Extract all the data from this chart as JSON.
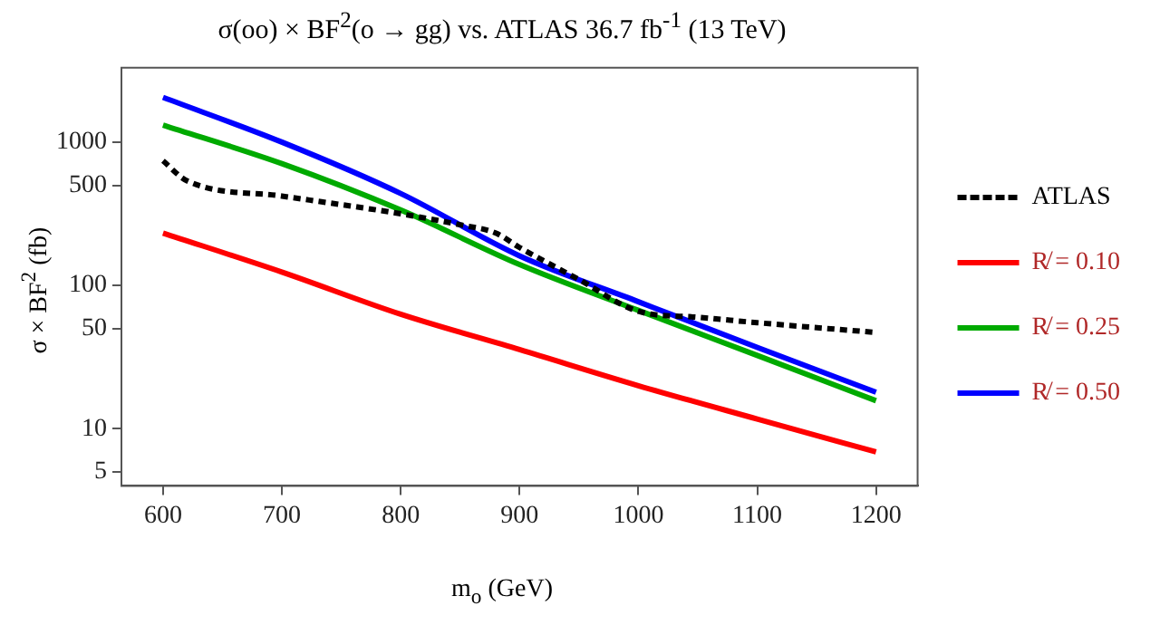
{
  "chart_data": {
    "type": "line",
    "title": "σ(oo) × BF$^{2}$(o → gg) vs. ATLAS 36.7 fb$^{-1}$ (13 TeV)",
    "xlabel": "m$_{o}$ (GeV)",
    "ylabel": "σ × BF$^{2}$ (fb)",
    "log": "y",
    "xlim": [
      565,
      1235
    ],
    "ylim": [
      4,
      3300
    ],
    "xticks": [
      600,
      700,
      800,
      900,
      1000,
      1100,
      1200
    ],
    "yticks": [
      5,
      10,
      50,
      100,
      500,
      1000
    ],
    "grid": false,
    "legend": "right",
    "marker": "none",
    "series": [
      {
        "name": "ATLAS",
        "color": "#000000",
        "line_style": "dotted",
        "x": [
          600,
          620,
          700,
          800,
          850,
          880,
          900,
          950,
          1000,
          1050,
          1100,
          1200
        ],
        "values": [
          740,
          538,
          420,
          316,
          265,
          232,
          184,
          110,
          66,
          60,
          55,
          47
        ]
      },
      {
        "name": "R̸ = 0.10",
        "color": "#ff0000",
        "line_style": "solid",
        "x": [
          600,
          700,
          800,
          900,
          1000,
          1100,
          1200
        ],
        "values": [
          232,
          124,
          63,
          35.7,
          20,
          11.7,
          6.9
        ]
      },
      {
        "name": "R̸ = 0.25",
        "color": "#00aa00",
        "line_style": "solid",
        "x": [
          600,
          700,
          800,
          900,
          1000,
          1100,
          1200
        ],
        "values": [
          1315,
          708,
          336,
          140,
          67,
          32.5,
          15.7
        ]
      },
      {
        "name": "R̸ = 0.50",
        "color": "#0000ff",
        "line_style": "solid",
        "x": [
          600,
          700,
          800,
          900,
          1000,
          1100,
          1200
        ],
        "values": [
          2050,
          1000,
          438,
          161,
          77,
          37,
          18
        ]
      }
    ]
  }
}
